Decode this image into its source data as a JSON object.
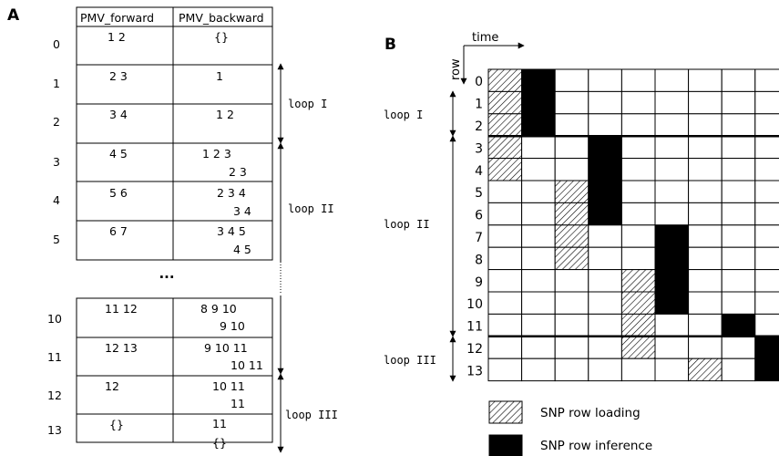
{
  "panel_a": {
    "label": "A",
    "col_forward": "PMV_forward",
    "col_backward": "PMV_backward",
    "ellipsis": "...",
    "rows": [
      {
        "index": "0",
        "forward": "1 2",
        "backward": [
          "{}"
        ]
      },
      {
        "index": "1",
        "forward": "2 3",
        "backward": [
          "1"
        ]
      },
      {
        "index": "2",
        "forward": "3 4",
        "backward": [
          "1 2"
        ]
      },
      {
        "index": "3",
        "forward": "4 5",
        "backward": [
          "1 2 3",
          "2 3"
        ]
      },
      {
        "index": "4",
        "forward": "5 6",
        "backward": [
          "2 3 4",
          "3 4"
        ]
      },
      {
        "index": "5",
        "forward": "6 7",
        "backward": [
          "3 4 5",
          "4 5"
        ]
      },
      {
        "index": "10",
        "forward": "11 12",
        "backward": [
          "8 9 10",
          "9 10"
        ]
      },
      {
        "index": "11",
        "forward": "12 13",
        "backward": [
          "9 10 11",
          "10 11"
        ]
      },
      {
        "index": "12",
        "forward": "12",
        "backward": [
          "10 11",
          "11"
        ]
      },
      {
        "index": "13",
        "forward": "{}",
        "backward": [
          "11",
          "{}"
        ]
      }
    ],
    "loops": [
      "loop I",
      "loop II",
      "loop III"
    ]
  },
  "panel_b": {
    "label": "B",
    "time_label": "time",
    "row_label": "row",
    "row_numbers": [
      "0",
      "1",
      "2",
      "3",
      "4",
      "5",
      "6",
      "7",
      "8",
      "9",
      "10",
      "11",
      "12",
      "13"
    ],
    "loops": [
      "loop I",
      "loop II",
      "loop III"
    ],
    "hatched": [
      [
        0,
        0
      ],
      [
        1,
        0
      ],
      [
        2,
        0
      ],
      [
        3,
        0
      ],
      [
        4,
        0
      ],
      [
        5,
        2
      ],
      [
        6,
        2
      ],
      [
        7,
        2
      ],
      [
        8,
        2
      ],
      [
        9,
        4
      ],
      [
        10,
        4
      ],
      [
        11,
        4
      ],
      [
        12,
        4
      ],
      [
        13,
        6
      ]
    ],
    "filled": [
      [
        0,
        1
      ],
      [
        1,
        1
      ],
      [
        2,
        1
      ],
      [
        3,
        3
      ],
      [
        4,
        3
      ],
      [
        5,
        3
      ],
      [
        6,
        3
      ],
      [
        7,
        5
      ],
      [
        8,
        5
      ],
      [
        9,
        5
      ],
      [
        10,
        5
      ],
      [
        11,
        7
      ],
      [
        12,
        8
      ],
      [
        13,
        8
      ]
    ],
    "legend": {
      "loading": "SNP row loading",
      "inference": "SNP row inference"
    }
  }
}
